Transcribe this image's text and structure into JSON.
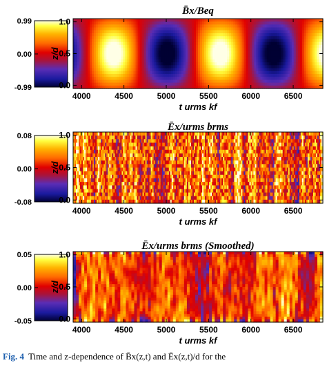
{
  "chart_data": [
    {
      "type": "heatmap",
      "title": "B̄x/Beq",
      "xlabel": "t urms kf",
      "ylabel": "z/d",
      "xlim": [
        3900,
        6850
      ],
      "ylim": [
        -0.05,
        1.05
      ],
      "x_ticks": [
        "4000",
        "4500",
        "5000",
        "5500",
        "6000",
        "6500"
      ],
      "y_ticks": [
        "0.0",
        "0.5",
        "1.0"
      ],
      "colorbar_ticks": [
        "0.99",
        "0.00",
        "-0.99"
      ],
      "colorbar_range": [
        -0.99,
        0.99
      ],
      "pattern": "Smooth alternating bands: positive maxima near t = 4380, 5650; negative minima near t = 5020, 6180",
      "band_centers": [
        {
          "t": 4380,
          "value": 0.99
        },
        {
          "t": 5020,
          "value": -0.99
        },
        {
          "t": 5650,
          "value": 0.99
        },
        {
          "t": 6180,
          "value": -0.99
        }
      ],
      "period": 1260,
      "phase_t": 4380
    },
    {
      "type": "heatmap",
      "title": "Ēx/urms brms",
      "xlabel": "t urms kf",
      "ylabel": "z/d",
      "xlim": [
        3900,
        6850
      ],
      "ylim": [
        -0.05,
        1.05
      ],
      "x_ticks": [
        "4000",
        "4500",
        "5000",
        "5500",
        "6000",
        "6500"
      ],
      "y_ticks": [
        "0.0",
        "0.5",
        "1.0"
      ],
      "colorbar_ticks": [
        "0.08",
        "0.00",
        "-0.08"
      ],
      "colorbar_range": [
        -0.08,
        0.08
      ],
      "pattern": "Noisy fine-scale vertical streaks around zero",
      "noise_scale_t": 12
    },
    {
      "type": "heatmap",
      "title": "Ēx/urms brms (Smoothed)",
      "xlabel": "t urms kf",
      "ylabel": "z/d",
      "xlim": [
        3900,
        6850
      ],
      "ylim": [
        -0.05,
        1.05
      ],
      "x_ticks": [
        "4000",
        "4500",
        "5000",
        "5500",
        "6000",
        "6500"
      ],
      "y_ticks": [
        "0.0",
        "0.5",
        "1.0"
      ],
      "colorbar_ticks": [
        "0.05",
        "0.00",
        "-0.05"
      ],
      "colorbar_range": [
        -0.05,
        0.05
      ],
      "pattern": "Smoothed blotchy structures around zero",
      "noise_scale_t": 60
    }
  ],
  "caption": {
    "label": "Fig. 4",
    "text": "Time and z-dependence of B̄x(z,t) and Ēx(z,t)/d for the"
  }
}
